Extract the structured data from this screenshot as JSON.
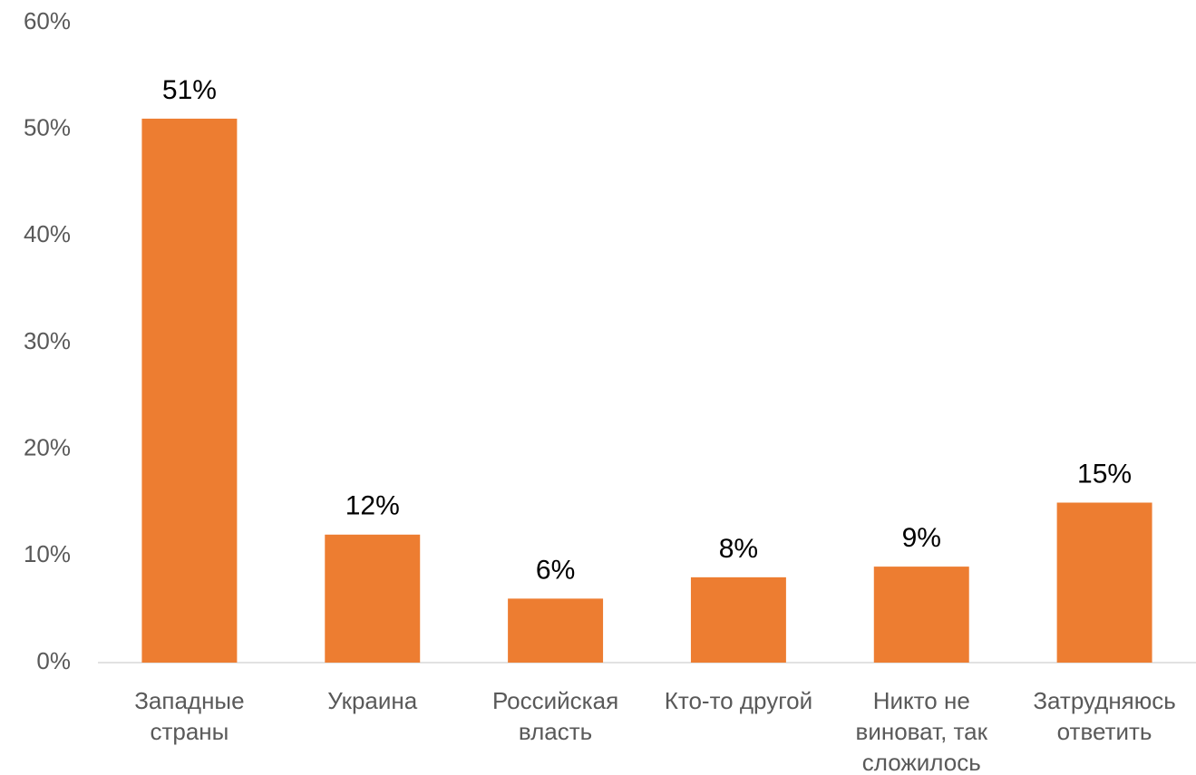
{
  "chart_data": {
    "type": "bar",
    "categories": [
      "Западные страны",
      "Украина",
      "Российская власть",
      "Кто-то другой",
      "Никто не виноват, так сложилось",
      "Затрудняюсь ответить"
    ],
    "values": [
      51,
      12,
      6,
      8,
      9,
      15
    ],
    "value_labels": [
      "51%",
      "12%",
      "6%",
      "8%",
      "9%",
      "15%"
    ],
    "color": "#ed7d31",
    "ylim": [
      0,
      60
    ],
    "yticks": [
      {
        "value": 0,
        "label": "0%"
      },
      {
        "value": 10,
        "label": "10%"
      },
      {
        "value": 20,
        "label": "20%"
      },
      {
        "value": 30,
        "label": "30%"
      },
      {
        "value": 40,
        "label": "40%"
      },
      {
        "value": 50,
        "label": "50%"
      },
      {
        "value": 60,
        "label": "60%"
      }
    ],
    "grid": false
  }
}
